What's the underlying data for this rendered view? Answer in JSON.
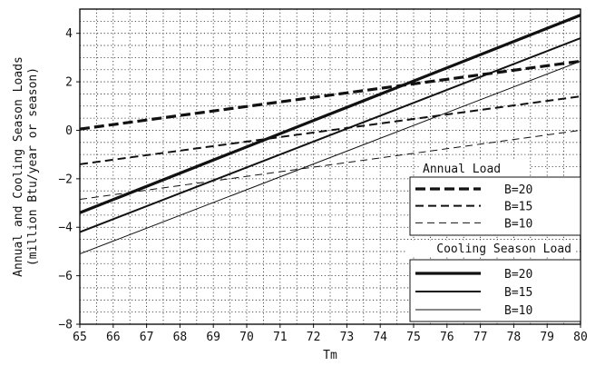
{
  "chart_data": {
    "type": "line",
    "title": "",
    "xlabel": "Tm",
    "ylabel_lines": [
      "Annual and Cooling Season Loads",
      "(million Btu/year or season)"
    ],
    "xlim": [
      65,
      80
    ],
    "ylim": [
      -8,
      5
    ],
    "xticks": [
      65,
      66,
      67,
      68,
      69,
      70,
      71,
      72,
      73,
      74,
      75,
      76,
      77,
      78,
      79,
      80
    ],
    "yticks": [
      -8,
      -6,
      -4,
      -2,
      0,
      2,
      4
    ],
    "grid": true,
    "minor_grid_x_step": 0.5,
    "minor_grid_y_step": 0.5,
    "legend": {
      "placement": "lower-right",
      "groups": [
        {
          "title": "Annual Load",
          "entries": [
            "B=20",
            "B=15",
            "B=10"
          ]
        },
        {
          "title": "Cooling Season Load",
          "entries": [
            "B=20",
            "B=15",
            "B=10"
          ]
        }
      ]
    },
    "series": [
      {
        "group": "Annual Load",
        "name": "B=20",
        "style": "dashed",
        "weight": "heavy",
        "x": [
          65,
          80
        ],
        "y": [
          0.05,
          2.85
        ]
      },
      {
        "group": "Annual Load",
        "name": "B=15",
        "style": "dashed",
        "weight": "medium",
        "x": [
          65,
          80
        ],
        "y": [
          -1.4,
          1.4
        ]
      },
      {
        "group": "Annual Load",
        "name": "B=10",
        "style": "dashed",
        "weight": "light",
        "x": [
          65,
          80
        ],
        "y": [
          -2.85,
          0.0
        ]
      },
      {
        "group": "Cooling Season Load",
        "name": "B=20",
        "style": "solid",
        "weight": "heavy",
        "x": [
          65,
          80
        ],
        "y": [
          -3.4,
          4.75
        ]
      },
      {
        "group": "Cooling Season Load",
        "name": "B=15",
        "style": "solid",
        "weight": "medium",
        "x": [
          65,
          80
        ],
        "y": [
          -4.2,
          3.8
        ]
      },
      {
        "group": "Cooling Season Load",
        "name": "B=10",
        "style": "solid",
        "weight": "light",
        "x": [
          65,
          80
        ],
        "y": [
          -5.1,
          2.85
        ]
      }
    ]
  }
}
